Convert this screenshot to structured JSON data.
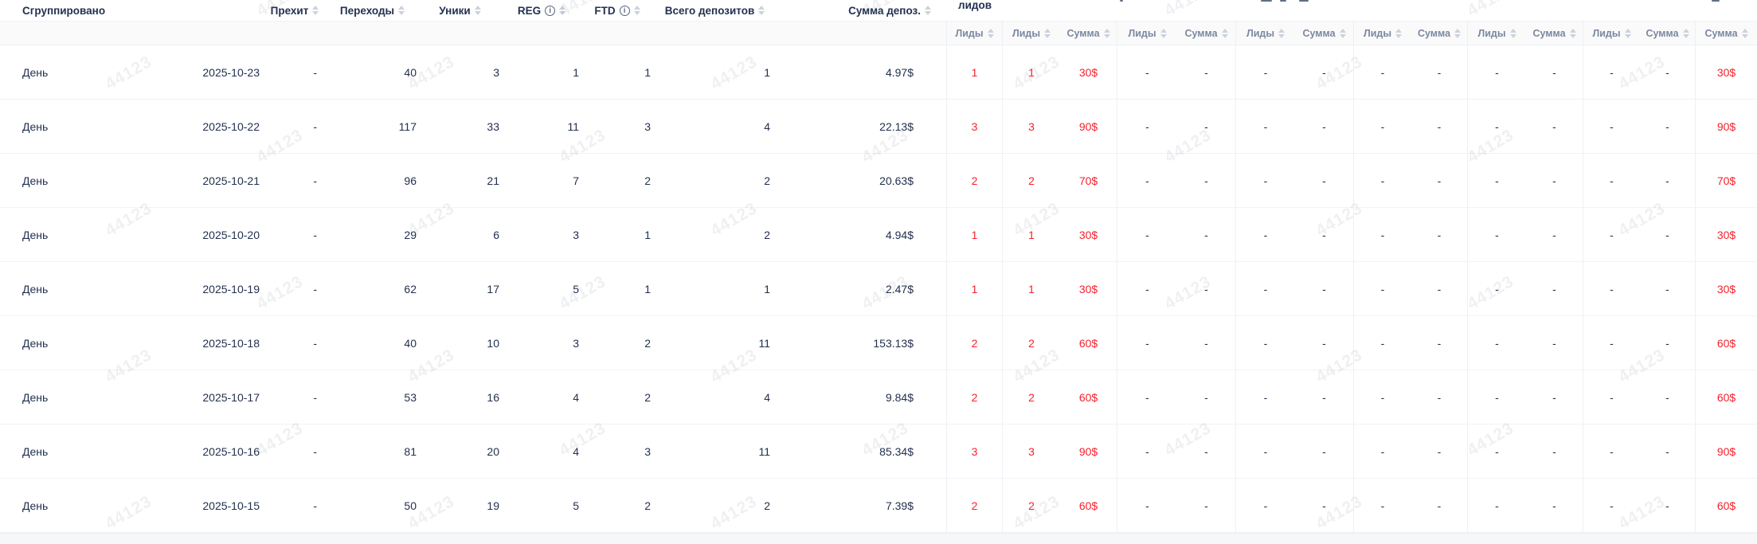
{
  "watermark": {
    "text": "44123"
  },
  "colors": {
    "accent_red": "#f5222d",
    "header_text": "#233150",
    "subheader_text": "#7b88a0"
  },
  "table": {
    "header": {
      "grouped": "Сгруппировано",
      "prehit": "Прехит",
      "clicks": "Переходы",
      "uniques": "Уники",
      "reg": "REG",
      "ftd": "FTD",
      "total_deposits": "Всего депозитов",
      "deposit_sum": "Сумма депоз.",
      "leads_group_visible_text": "лидов",
      "leads": "Лиды",
      "sum": "Сумма"
    },
    "rows": [
      {
        "group": "День",
        "date": "2025-10-23",
        "prehit": "-",
        "clicks": "40",
        "uniques": "3",
        "reg": "1",
        "ftd": "1",
        "deposits": "1",
        "deposit_sum": "4.97$",
        "leads_total": "1",
        "g1_leads": "1",
        "g1_sum": "30$",
        "g2_leads": "-",
        "g2_sum": "-",
        "g3_leads": "-",
        "g3_sum": "-",
        "g4_leads": "-",
        "g4_sum": "-",
        "g5_leads": "-",
        "g5_sum": "-",
        "g6_leads": "-",
        "g6_sum": "-",
        "total_sum": "30$"
      },
      {
        "group": "День",
        "date": "2025-10-22",
        "prehit": "-",
        "clicks": "117",
        "uniques": "33",
        "reg": "11",
        "ftd": "3",
        "deposits": "4",
        "deposit_sum": "22.13$",
        "leads_total": "3",
        "g1_leads": "3",
        "g1_sum": "90$",
        "g2_leads": "-",
        "g2_sum": "-",
        "g3_leads": "-",
        "g3_sum": "-",
        "g4_leads": "-",
        "g4_sum": "-",
        "g5_leads": "-",
        "g5_sum": "-",
        "g6_leads": "-",
        "g6_sum": "-",
        "total_sum": "90$"
      },
      {
        "group": "День",
        "date": "2025-10-21",
        "prehit": "-",
        "clicks": "96",
        "uniques": "21",
        "reg": "7",
        "ftd": "2",
        "deposits": "2",
        "deposit_sum": "20.63$",
        "leads_total": "2",
        "g1_leads": "2",
        "g1_sum": "70$",
        "g2_leads": "-",
        "g2_sum": "-",
        "g3_leads": "-",
        "g3_sum": "-",
        "g4_leads": "-",
        "g4_sum": "-",
        "g5_leads": "-",
        "g5_sum": "-",
        "g6_leads": "-",
        "g6_sum": "-",
        "total_sum": "70$"
      },
      {
        "group": "День",
        "date": "2025-10-20",
        "prehit": "-",
        "clicks": "29",
        "uniques": "6",
        "reg": "3",
        "ftd": "1",
        "deposits": "2",
        "deposit_sum": "4.94$",
        "leads_total": "1",
        "g1_leads": "1",
        "g1_sum": "30$",
        "g2_leads": "-",
        "g2_sum": "-",
        "g3_leads": "-",
        "g3_sum": "-",
        "g4_leads": "-",
        "g4_sum": "-",
        "g5_leads": "-",
        "g5_sum": "-",
        "g6_leads": "-",
        "g6_sum": "-",
        "total_sum": "30$"
      },
      {
        "group": "День",
        "date": "2025-10-19",
        "prehit": "-",
        "clicks": "62",
        "uniques": "17",
        "reg": "5",
        "ftd": "1",
        "deposits": "1",
        "deposit_sum": "2.47$",
        "leads_total": "1",
        "g1_leads": "1",
        "g1_sum": "30$",
        "g2_leads": "-",
        "g2_sum": "-",
        "g3_leads": "-",
        "g3_sum": "-",
        "g4_leads": "-",
        "g4_sum": "-",
        "g5_leads": "-",
        "g5_sum": "-",
        "g6_leads": "-",
        "g6_sum": "-",
        "total_sum": "30$"
      },
      {
        "group": "День",
        "date": "2025-10-18",
        "prehit": "-",
        "clicks": "40",
        "uniques": "10",
        "reg": "3",
        "ftd": "2",
        "deposits": "11",
        "deposit_sum": "153.13$",
        "leads_total": "2",
        "g1_leads": "2",
        "g1_sum": "60$",
        "g2_leads": "-",
        "g2_sum": "-",
        "g3_leads": "-",
        "g3_sum": "-",
        "g4_leads": "-",
        "g4_sum": "-",
        "g5_leads": "-",
        "g5_sum": "-",
        "g6_leads": "-",
        "g6_sum": "-",
        "total_sum": "60$"
      },
      {
        "group": "День",
        "date": "2025-10-17",
        "prehit": "-",
        "clicks": "53",
        "uniques": "16",
        "reg": "4",
        "ftd": "2",
        "deposits": "4",
        "deposit_sum": "9.84$",
        "leads_total": "2",
        "g1_leads": "2",
        "g1_sum": "60$",
        "g2_leads": "-",
        "g2_sum": "-",
        "g3_leads": "-",
        "g3_sum": "-",
        "g4_leads": "-",
        "g4_sum": "-",
        "g5_leads": "-",
        "g5_sum": "-",
        "g6_leads": "-",
        "g6_sum": "-",
        "total_sum": "60$"
      },
      {
        "group": "День",
        "date": "2025-10-16",
        "prehit": "-",
        "clicks": "81",
        "uniques": "20",
        "reg": "4",
        "ftd": "3",
        "deposits": "11",
        "deposit_sum": "85.34$",
        "leads_total": "3",
        "g1_leads": "3",
        "g1_sum": "90$",
        "g2_leads": "-",
        "g2_sum": "-",
        "g3_leads": "-",
        "g3_sum": "-",
        "g4_leads": "-",
        "g4_sum": "-",
        "g5_leads": "-",
        "g5_sum": "-",
        "g6_leads": "-",
        "g6_sum": "-",
        "total_sum": "90$"
      },
      {
        "group": "День",
        "date": "2025-10-15",
        "prehit": "-",
        "clicks": "50",
        "uniques": "19",
        "reg": "5",
        "ftd": "2",
        "deposits": "2",
        "deposit_sum": "7.39$",
        "leads_total": "2",
        "g1_leads": "2",
        "g1_sum": "60$",
        "g2_leads": "-",
        "g2_sum": "-",
        "g3_leads": "-",
        "g3_sum": "-",
        "g4_leads": "-",
        "g4_sum": "-",
        "g5_leads": "-",
        "g5_sum": "-",
        "g6_leads": "-",
        "g6_sum": "-",
        "total_sum": "60$"
      }
    ]
  }
}
